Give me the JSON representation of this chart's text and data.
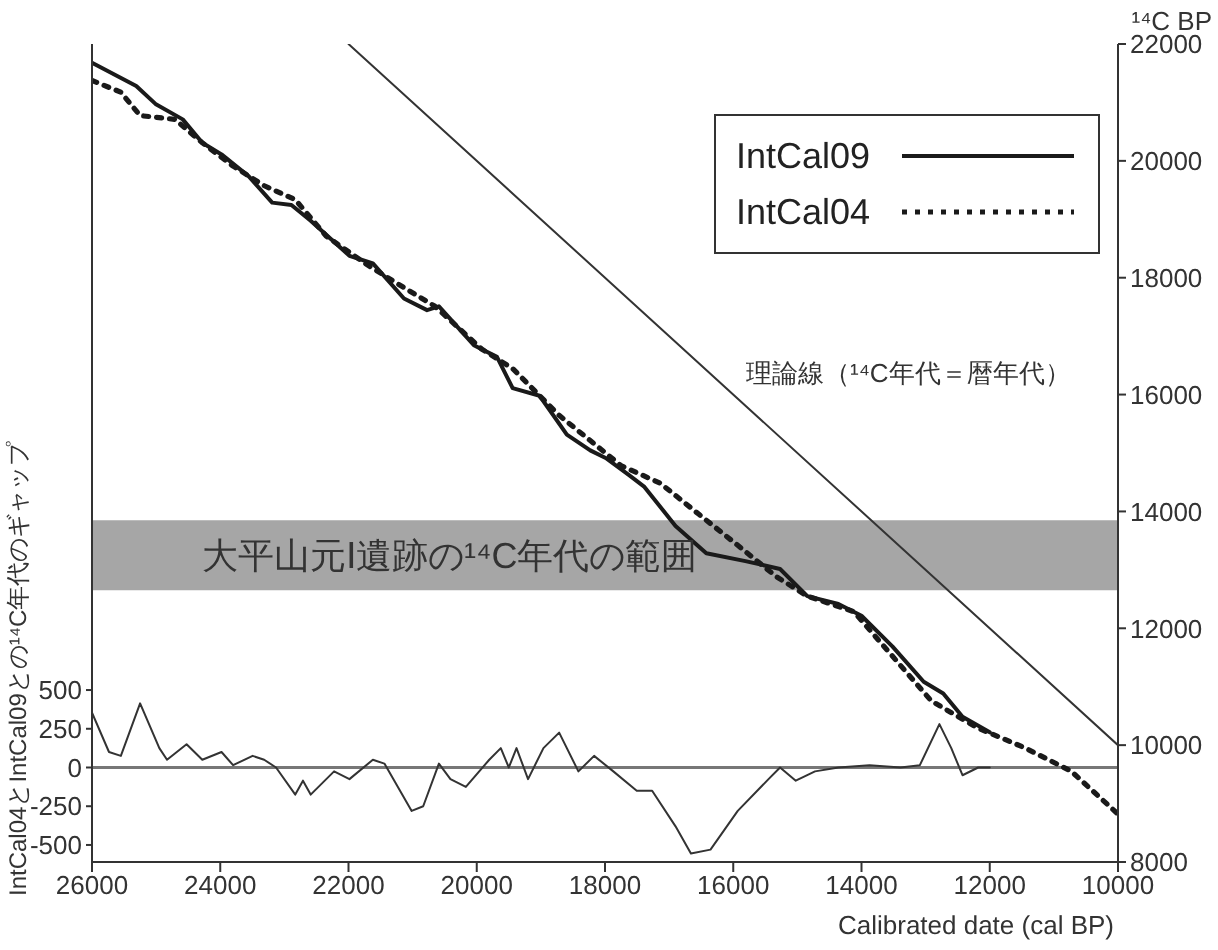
{
  "chart_data": {
    "type": "line",
    "xlabel": "Calibrated date (cal BP)",
    "ylabel": "IntCal04とIntCal09との¹⁴C年代のギャップ",
    "y2label": "¹⁴C BP",
    "xlim": [
      26000,
      10000
    ],
    "xticks": [
      26000,
      24000,
      22000,
      20000,
      18000,
      16000,
      14000,
      12000,
      10000
    ],
    "ylim": [
      -610,
      4670
    ],
    "yticks": [
      -500,
      -250,
      0,
      250,
      500
    ],
    "y2lim": [
      8000,
      22000
    ],
    "y2ticks": [
      8000,
      10000,
      12000,
      14000,
      16000,
      18000,
      20000,
      22000
    ],
    "legend": "top right",
    "grid": false,
    "marker": "none",
    "series": [
      {
        "name": "IntCal09",
        "color": "#1a1a1a",
        "axis": "y2",
        "line_style": "solid",
        "x": [
          26000,
          25310,
          25010,
          24585,
          24280,
          23980,
          23555,
          23190,
          22890,
          22590,
          21985,
          21620,
          21135,
          20775,
          20590,
          20045,
          19685,
          19440,
          19020,
          18595,
          18230,
          17990,
          17625,
          17385,
          16900,
          16420,
          15810,
          15270,
          14845,
          14360,
          14000,
          13515,
          13030,
          12725,
          12425,
          12000
        ],
        "values": [
          21680,
          21280,
          20975,
          20710,
          20310,
          20110,
          19735,
          19285,
          19245,
          18975,
          18375,
          18245,
          17645,
          17445,
          17510,
          16845,
          16645,
          16110,
          15980,
          15315,
          15045,
          14915,
          14620,
          14420,
          13750,
          13285,
          13150,
          13015,
          12550,
          12415,
          12215,
          11685,
          11085,
          10885,
          10485,
          10220
        ]
      },
      {
        "name": "IntCal04",
        "color": "#1a1a1a",
        "axis": "y2",
        "line_style": "dotted",
        "x": [
          26000,
          25550,
          25250,
          24705,
          24280,
          23800,
          23315,
          22830,
          22345,
          21740,
          21255,
          20650,
          19925,
          19440,
          18715,
          17745,
          17140,
          16535,
          15930,
          15330,
          14845,
          14120,
          12910,
          12180,
          11455,
          10730,
          10000
        ],
        "values": [
          21375,
          21175,
          20775,
          20710,
          20310,
          19910,
          19575,
          19335,
          18710,
          18245,
          17910,
          17510,
          16780,
          16445,
          15645,
          14780,
          14485,
          13950,
          13420,
          12885,
          12550,
          12285,
          10755,
          10290,
          9955,
          9555,
          8820
        ]
      },
      {
        "color": "#333333",
        "axis": "y2",
        "line_style": "solid",
        "x": [
          22000,
          10000
        ],
        "values": [
          22000,
          10000
        ]
      },
      {
        "color": "#333333",
        "axis": "y",
        "line_style": "solid",
        "x": [
          26000,
          25735,
          25550,
          25250,
          24950,
          24830,
          24525,
          24280,
          23980,
          23800,
          23495,
          23315,
          23130,
          22830,
          22710,
          22590,
          22225,
          21985,
          21620,
          21440,
          21015,
          20835,
          20590,
          20410,
          20170,
          19805,
          19625,
          19500,
          19380,
          19200,
          18960,
          18715,
          18415,
          18170,
          17870,
          17505,
          17265,
          16900,
          16660,
          16355,
          15930,
          15450,
          15270,
          15025,
          14725,
          14360,
          13875,
          13390,
          13090,
          12785,
          12600,
          12425,
          12180,
          12000
        ],
        "values": [
          354,
          100,
          75,
          414,
          125,
          50,
          150,
          50,
          100,
          15,
          75,
          50,
          0,
          -175,
          -85,
          -175,
          -25,
          -75,
          50,
          25,
          -280,
          -250,
          25,
          -75,
          -125,
          50,
          125,
          0,
          125,
          -75,
          125,
          225,
          -25,
          75,
          -25,
          -150,
          -150,
          -380,
          -555,
          -530,
          -280,
          -75,
          0,
          -85,
          -25,
          0,
          15,
          0,
          15,
          280,
          125,
          -50,
          0,
          0
        ]
      }
    ],
    "ref_lines": [
      {
        "axis": "y",
        "value": 0,
        "color": "#777777"
      }
    ],
    "bands": [
      {
        "axis": "y2",
        "from": 12650,
        "to": 13850,
        "label": "大平山元Ⅰ遺跡の¹⁴C年代の範囲",
        "color": "#a6a6a6"
      }
    ],
    "annotations": [
      "理論線（¹⁴C年代＝暦年代）"
    ]
  }
}
